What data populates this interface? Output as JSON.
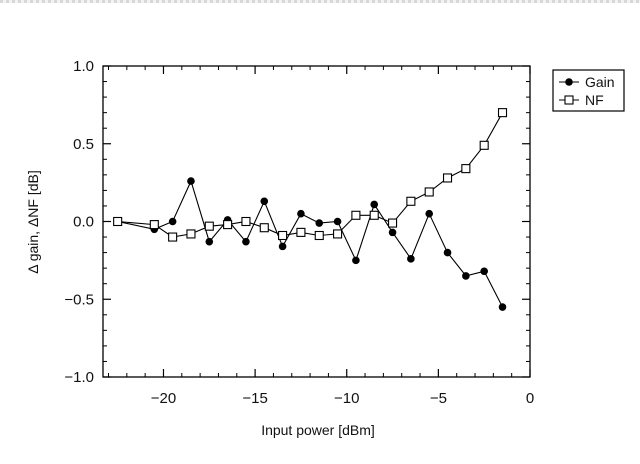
{
  "chart_data": {
    "type": "line",
    "title": "",
    "xlabel": "Input power [dBm]",
    "ylabel": "Δ gain, ΔNF [dB]",
    "xlim": [
      -23.3,
      0
    ],
    "ylim": [
      -1.0,
      1.0
    ],
    "x_ticks": [
      -20,
      -15,
      -10,
      -5,
      0
    ],
    "x_tick_labels": [
      "−20",
      "−15",
      "−10",
      "−5",
      "0"
    ],
    "y_ticks": [
      -1.0,
      -0.5,
      0.0,
      0.5,
      1.0
    ],
    "y_tick_labels": [
      "−1.0",
      "−0.5",
      "0.0",
      "0.5",
      "1.0"
    ],
    "legend_position": "outside-top-right",
    "series": [
      {
        "name": "Gain",
        "marker": "filled-circle",
        "x": [
          -22.5,
          -20.5,
          -19.5,
          -18.5,
          -17.5,
          -16.5,
          -15.5,
          -14.5,
          -13.5,
          -12.5,
          -11.5,
          -10.5,
          -9.5,
          -8.5,
          -7.5,
          -6.5,
          -5.5,
          -4.5,
          -3.5,
          -2.5,
          -1.5
        ],
        "y": [
          0.0,
          -0.05,
          0.0,
          0.26,
          -0.13,
          0.01,
          -0.13,
          0.13,
          -0.16,
          0.05,
          -0.01,
          0.0,
          -0.25,
          0.11,
          -0.07,
          -0.24,
          0.05,
          -0.2,
          -0.35,
          -0.32,
          -0.55
        ]
      },
      {
        "name": "NF",
        "marker": "open-square",
        "x": [
          -22.5,
          -20.5,
          -19.5,
          -18.5,
          -17.5,
          -16.5,
          -15.5,
          -14.5,
          -13.5,
          -12.5,
          -11.5,
          -10.5,
          -9.5,
          -8.5,
          -7.5,
          -6.5,
          -5.5,
          -4.5,
          -3.5,
          -2.5,
          -1.5
        ],
        "y": [
          0.0,
          -0.02,
          -0.1,
          -0.08,
          -0.03,
          -0.02,
          0.0,
          -0.04,
          -0.09,
          -0.07,
          -0.09,
          -0.08,
          0.04,
          0.04,
          -0.01,
          0.13,
          0.19,
          0.28,
          0.34,
          0.49,
          0.7
        ]
      }
    ]
  }
}
